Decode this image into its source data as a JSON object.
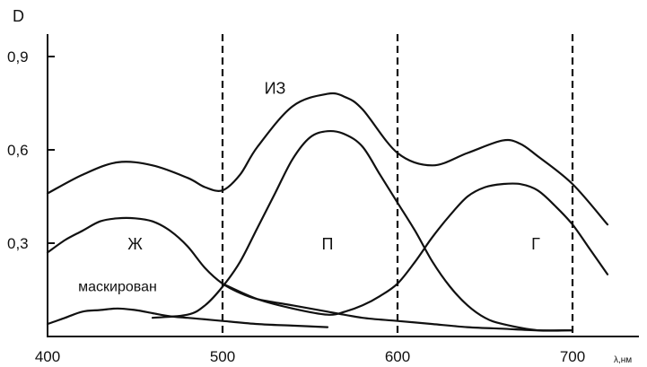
{
  "chart_data": {
    "type": "line",
    "title": "",
    "xlabel": "λ,нм",
    "ylabel": "D",
    "xlim": [
      390,
      730
    ],
    "ylim": [
      0,
      1.0
    ],
    "x_ticks": [
      400,
      500,
      600,
      700
    ],
    "x_tick_labels": [
      "400",
      "500",
      "600",
      "700"
    ],
    "y_ticks": [
      0.3,
      0.6,
      0.9
    ],
    "y_tick_labels": [
      "0,3",
      "0,6",
      "0,9"
    ],
    "grid": false,
    "vertical_lines": [
      500,
      600,
      700
    ],
    "series": [
      {
        "name": "ИЗ",
        "label_at": [
          530,
          0.78
        ],
        "x": [
          400,
          420,
          440,
          460,
          480,
          490,
          500,
          510,
          520,
          540,
          560,
          570,
          580,
          600,
          620,
          640,
          660,
          670,
          680,
          700,
          720
        ],
        "y": [
          0.46,
          0.52,
          0.56,
          0.55,
          0.51,
          0.48,
          0.47,
          0.52,
          0.61,
          0.74,
          0.78,
          0.77,
          0.73,
          0.59,
          0.55,
          0.59,
          0.63,
          0.62,
          0.58,
          0.49,
          0.36
        ]
      },
      {
        "name": "Ж",
        "label_at": [
          450,
          0.28
        ],
        "x": [
          400,
          410,
          420,
          430,
          440,
          450,
          460,
          470,
          480,
          490,
          500,
          510,
          520,
          540,
          560,
          580,
          600,
          620,
          640,
          660,
          680,
          700
        ],
        "y": [
          0.27,
          0.31,
          0.34,
          0.37,
          0.38,
          0.38,
          0.37,
          0.34,
          0.29,
          0.22,
          0.17,
          0.14,
          0.12,
          0.1,
          0.08,
          0.06,
          0.05,
          0.04,
          0.03,
          0.025,
          0.02,
          0.02
        ]
      },
      {
        "name": "П",
        "label_at": [
          560,
          0.28
        ],
        "x": [
          460,
          480,
          490,
          500,
          510,
          520,
          530,
          540,
          550,
          560,
          570,
          580,
          590,
          600,
          610,
          620,
          630,
          640,
          650,
          660,
          680,
          700
        ],
        "y": [
          0.06,
          0.07,
          0.1,
          0.16,
          0.24,
          0.35,
          0.46,
          0.57,
          0.64,
          0.66,
          0.65,
          0.61,
          0.52,
          0.43,
          0.34,
          0.24,
          0.16,
          0.1,
          0.06,
          0.04,
          0.02,
          0.02
        ]
      },
      {
        "name": "Г",
        "label_at": [
          679,
          0.28
        ],
        "x": [
          500,
          520,
          540,
          560,
          570,
          580,
          590,
          600,
          610,
          620,
          630,
          640,
          650,
          660,
          670,
          680,
          690,
          700,
          710,
          720
        ],
        "y": [
          0.17,
          0.12,
          0.09,
          0.07,
          0.08,
          0.1,
          0.13,
          0.17,
          0.24,
          0.32,
          0.39,
          0.45,
          0.48,
          0.49,
          0.49,
          0.47,
          0.42,
          0.36,
          0.28,
          0.2
        ]
      },
      {
        "name": "маскирован",
        "label_at": [
          440,
          0.145
        ],
        "x": [
          400,
          410,
          420,
          430,
          440,
          450,
          460,
          470,
          480,
          490,
          500,
          520,
          540,
          560
        ],
        "y": [
          0.04,
          0.06,
          0.08,
          0.085,
          0.09,
          0.085,
          0.075,
          0.065,
          0.06,
          0.055,
          0.05,
          0.04,
          0.035,
          0.03
        ]
      }
    ]
  }
}
